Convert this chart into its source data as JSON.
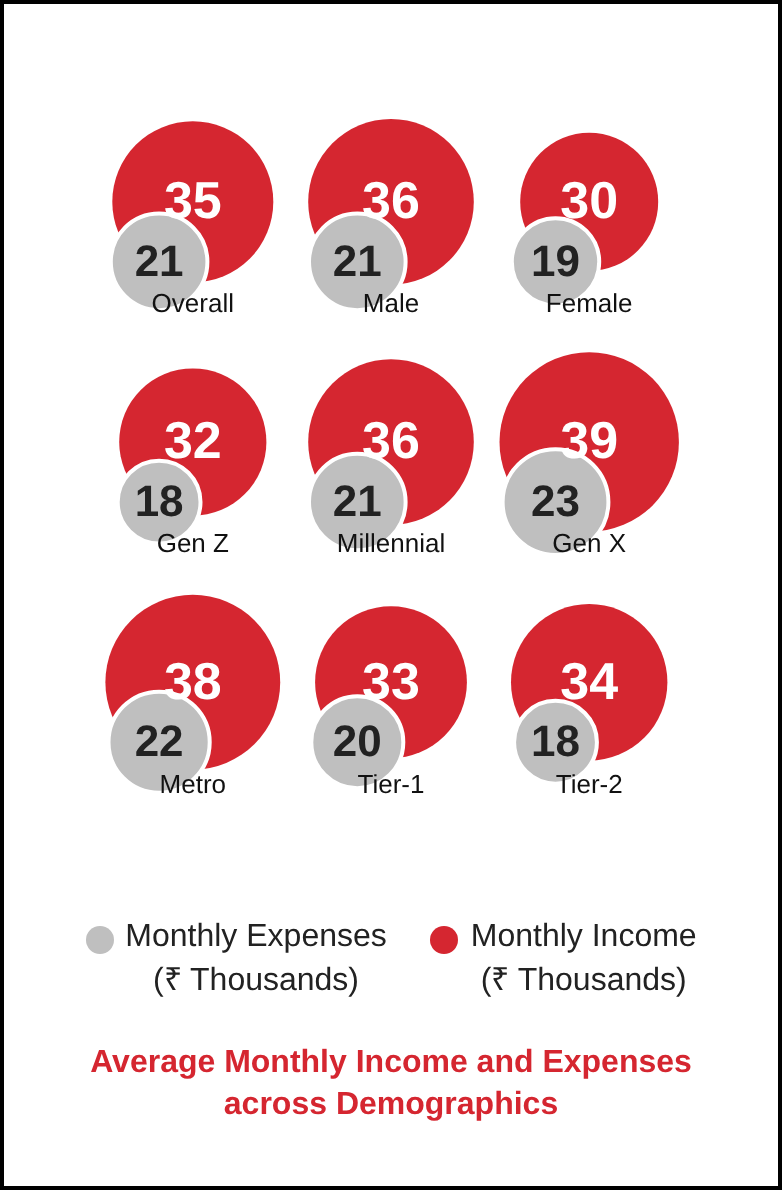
{
  "chart_data": {
    "type": "other",
    "title": "Average Monthly Income and Expenses across Demographics",
    "categories": [
      "Overall",
      "Male",
      "Female",
      "Gen Z",
      "Millennial",
      "Gen X",
      "Metro",
      "Tier-1",
      "Tier-2"
    ],
    "series": [
      {
        "name": "Monthly Expenses\n(₹ Thousands)",
        "color": "#bfbfbf",
        "values": [
          21,
          21,
          19,
          18,
          21,
          23,
          22,
          20,
          18
        ]
      },
      {
        "name": "Monthly Income\n(₹ Thousands)",
        "color": "#d52630",
        "values": [
          35,
          36,
          30,
          32,
          36,
          39,
          38,
          33,
          34
        ]
      }
    ],
    "data_labels": true,
    "legend": "bottom"
  }
}
